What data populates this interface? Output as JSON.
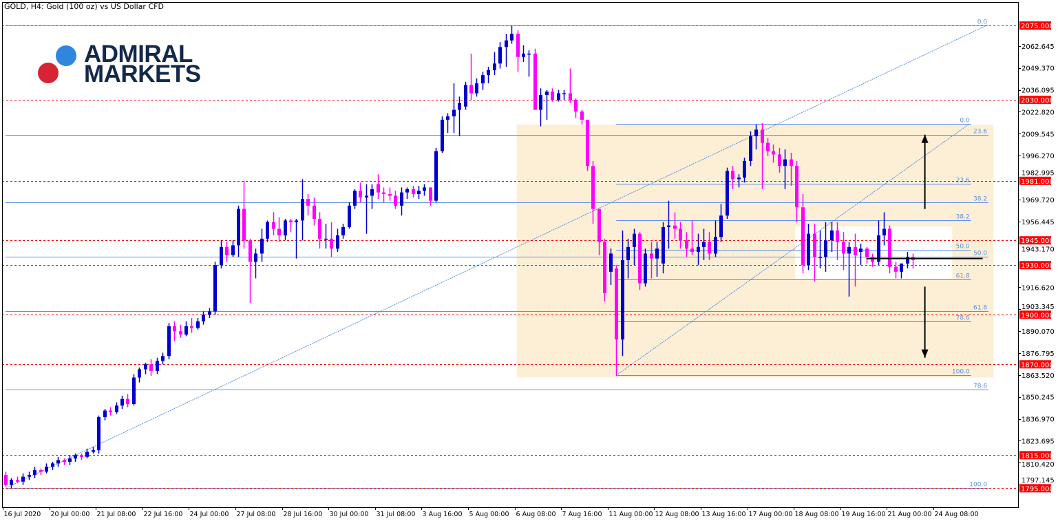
{
  "header": {
    "title": "GOLD, H4:  Gold (100 oz) vs US Dollar CFD"
  },
  "logo": {
    "line1": "ADMIRAL",
    "line2": "MARKETS",
    "colors": {
      "dot_blue": "#2e86de",
      "dot_red": "#d62434",
      "text": "#13294b"
    }
  },
  "chart_data": {
    "type": "candlestick",
    "symbol": "GOLD",
    "timeframe": "H4",
    "ylim": [
      1783.5,
      2089.2
    ],
    "y_ticks": [
      "2062.645",
      "2049.370",
      "2036.095",
      "2022.820",
      "2009.545",
      "1996.270",
      "1982.995",
      "1969.720",
      "1956.445",
      "1943.170",
      "1916.620",
      "1903.345",
      "1890.070",
      "1876.795",
      "1863.520",
      "1850.245",
      "1836.970",
      "1823.695",
      "1810.420",
      "1797.145"
    ],
    "x_ticks": [
      "16 Jul 2020",
      "20 Jul 00:00",
      "21 Jul 08:00",
      "22 Jul 16:00",
      "24 Jul 00:00",
      "27 Jul 08:00",
      "28 Jul 16:00",
      "30 Jul 00:00",
      "31 Jul 08:00",
      "3 Aug 16:00",
      "5 Aug 00:00",
      "6 Aug 08:00",
      "7 Aug 16:00",
      "11 Aug 00:00",
      "12 Aug 08:00",
      "13 Aug 16:00",
      "17 Aug 00:00",
      "18 Aug 08:00",
      "19 Aug 16:00",
      "21 Aug 00:00",
      "24 Aug 08:00"
    ],
    "x_tick_every_bars": 8,
    "colors": {
      "bull": "#0000cd",
      "bear": "#ff00ff",
      "level": "#ff0000",
      "fib": "#5b8ee6",
      "zone": "#fdefd6"
    },
    "candles_ohlc": [
      [
        1803,
        1805,
        1796,
        1797
      ],
      [
        1797,
        1801,
        1795,
        1800
      ],
      [
        1800,
        1802,
        1798,
        1799
      ],
      [
        1799,
        1804,
        1797,
        1802
      ],
      [
        1802,
        1805,
        1800,
        1803
      ],
      [
        1803,
        1808,
        1801,
        1806
      ],
      [
        1806,
        1807,
        1803,
        1805
      ],
      [
        1805,
        1810,
        1804,
        1808
      ],
      [
        1808,
        1811,
        1806,
        1810
      ],
      [
        1810,
        1814,
        1808,
        1812
      ],
      [
        1812,
        1813,
        1809,
        1811
      ],
      [
        1811,
        1815,
        1809,
        1813
      ],
      [
        1813,
        1816,
        1811,
        1815
      ],
      [
        1815,
        1816,
        1812,
        1814
      ],
      [
        1814,
        1819,
        1813,
        1817
      ],
      [
        1817,
        1820,
        1816,
        1818
      ],
      [
        1818,
        1839,
        1816,
        1838
      ],
      [
        1838,
        1843,
        1836,
        1842
      ],
      [
        1842,
        1844,
        1839,
        1841
      ],
      [
        1841,
        1847,
        1840,
        1845
      ],
      [
        1845,
        1851,
        1843,
        1849
      ],
      [
        1849,
        1852,
        1844,
        1846
      ],
      [
        1846,
        1864,
        1845,
        1862
      ],
      [
        1862,
        1868,
        1859,
        1867
      ],
      [
        1867,
        1871,
        1864,
        1870
      ],
      [
        1870,
        1873,
        1863,
        1866
      ],
      [
        1866,
        1874,
        1864,
        1872
      ],
      [
        1872,
        1877,
        1870,
        1875
      ],
      [
        1875,
        1895,
        1873,
        1893
      ],
      [
        1893,
        1896,
        1884,
        1890
      ],
      [
        1890,
        1894,
        1886,
        1888
      ],
      [
        1888,
        1896,
        1887,
        1893
      ],
      [
        1893,
        1898,
        1889,
        1892
      ],
      [
        1892,
        1898,
        1891,
        1896
      ],
      [
        1896,
        1902,
        1894,
        1900
      ],
      [
        1900,
        1904,
        1898,
        1902
      ],
      [
        1902,
        1932,
        1900,
        1930
      ],
      [
        1930,
        1945,
        1928,
        1941
      ],
      [
        1941,
        1944,
        1932,
        1936
      ],
      [
        1936,
        1945,
        1935,
        1942
      ],
      [
        1942,
        1966,
        1935,
        1964
      ],
      [
        1964,
        1981,
        1940,
        1945
      ],
      [
        1945,
        1946,
        1907,
        1932
      ],
      [
        1932,
        1940,
        1922,
        1937
      ],
      [
        1937,
        1952,
        1932,
        1946
      ],
      [
        1946,
        1957,
        1944,
        1956
      ],
      [
        1956,
        1962,
        1948,
        1952
      ],
      [
        1952,
        1959,
        1944,
        1948
      ],
      [
        1948,
        1958,
        1945,
        1957
      ],
      [
        1957,
        1958,
        1950,
        1956
      ],
      [
        1956,
        1958,
        1934,
        1957
      ],
      [
        1957,
        1982,
        1945,
        1970
      ],
      [
        1970,
        1973,
        1960,
        1966
      ],
      [
        1966,
        1971,
        1954,
        1958
      ],
      [
        1958,
        1962,
        1940,
        1946
      ],
      [
        1946,
        1955,
        1940,
        1946
      ],
      [
        1946,
        1956,
        1935,
        1940
      ],
      [
        1940,
        1952,
        1938,
        1948
      ],
      [
        1948,
        1955,
        1946,
        1953
      ],
      [
        1953,
        1968,
        1952,
        1966
      ],
      [
        1966,
        1976,
        1964,
        1975
      ],
      [
        1975,
        1980,
        1968,
        1971
      ],
      [
        1971,
        1979,
        1949,
        1972
      ],
      [
        1972,
        1979,
        1964,
        1976
      ],
      [
        1979,
        1985,
        1970,
        1974
      ],
      [
        1974,
        1977,
        1968,
        1973
      ],
      [
        1973,
        1977,
        1969,
        1972
      ],
      [
        1972,
        1975,
        1964,
        1966
      ],
      [
        1966,
        1977,
        1960,
        1974
      ],
      [
        1974,
        1977,
        1970,
        1976
      ],
      [
        1976,
        1978,
        1971,
        1973
      ],
      [
        1973,
        1978,
        1970,
        1975
      ],
      [
        1975,
        1979,
        1972,
        1977
      ],
      [
        1977,
        1977,
        1966,
        1969
      ],
      [
        1969,
        2001,
        1968,
        1999
      ],
      [
        1999,
        2020,
        1998,
        2018
      ],
      [
        2018,
        2022,
        2010,
        2020
      ],
      [
        2020,
        2040,
        2010,
        2024
      ],
      [
        2024,
        2032,
        2008,
        2028
      ],
      [
        2026,
        2041,
        2024,
        2039
      ],
      [
        2039,
        2058,
        2030,
        2034
      ],
      [
        2034,
        2043,
        2032,
        2040
      ],
      [
        2040,
        2047,
        2036,
        2045
      ],
      [
        2045,
        2050,
        2040,
        2048
      ],
      [
        2048,
        2059,
        2045,
        2052
      ],
      [
        2052,
        2065,
        2049,
        2062
      ],
      [
        2062,
        2070,
        2050,
        2066
      ],
      [
        2066,
        2075,
        2064,
        2070
      ],
      [
        2070,
        2072,
        2047,
        2056
      ],
      [
        2056,
        2063,
        2053,
        2058
      ],
      [
        2058,
        2060,
        2044,
        2058
      ],
      [
        2058,
        2061,
        2024,
        2024
      ],
      [
        2024,
        2037,
        2014,
        2033
      ],
      [
        2033,
        2036,
        2018,
        2035
      ],
      [
        2035,
        2037,
        2029,
        2030
      ],
      [
        2030,
        2036,
        2029,
        2034
      ],
      [
        2034,
        2036,
        2030,
        2034
      ],
      [
        2034,
        2049,
        2028,
        2030
      ],
      [
        2030,
        2031,
        2019,
        2023
      ],
      [
        2023,
        2024,
        2015,
        2018
      ],
      [
        2018,
        2018,
        1987,
        1990
      ],
      [
        1990,
        1993,
        1955,
        1964
      ],
      [
        1964,
        1964,
        1936,
        1944
      ],
      [
        1944,
        1946,
        1908,
        1913
      ],
      [
        1926,
        1940,
        1918,
        1937
      ],
      [
        1928,
        1930,
        1863,
        1885
      ],
      [
        1885,
        1951,
        1875,
        1933
      ],
      [
        1933,
        1946,
        1922,
        1941
      ],
      [
        1941,
        1952,
        1930,
        1949
      ],
      [
        1949,
        1950,
        1915,
        1919
      ],
      [
        1919,
        1940,
        1917,
        1937
      ],
      [
        1937,
        1944,
        1922,
        1934
      ],
      [
        1934,
        1944,
        1923,
        1940
      ],
      [
        1931,
        1956,
        1925,
        1953
      ],
      [
        1953,
        1969,
        1940,
        1954
      ],
      [
        1954,
        1962,
        1946,
        1952
      ],
      [
        1952,
        1956,
        1940,
        1945
      ],
      [
        1945,
        1950,
        1935,
        1940
      ],
      [
        1940,
        1957,
        1936,
        1938
      ],
      [
        1938,
        1949,
        1930,
        1941
      ],
      [
        1941,
        1952,
        1933,
        1944
      ],
      [
        1944,
        1950,
        1933,
        1937
      ],
      [
        1937,
        1957,
        1935,
        1947
      ],
      [
        1947,
        1967,
        1944,
        1960
      ],
      [
        1960,
        1989,
        1958,
        1987
      ],
      [
        1987,
        1990,
        1976,
        1982
      ],
      [
        1982,
        1985,
        1977,
        1983
      ],
      [
        1983,
        1995,
        1980,
        1993
      ],
      [
        1993,
        2011,
        1990,
        2008
      ],
      [
        2008,
        2015,
        2000,
        2012
      ],
      [
        2012,
        2016,
        1976,
        2004
      ],
      [
        2004,
        2007,
        1996,
        1999
      ],
      [
        1999,
        2003,
        1992,
        1997
      ],
      [
        1997,
        2001,
        1986,
        1990
      ],
      [
        1990,
        2000,
        1976,
        1994
      ],
      [
        1994,
        1998,
        1978,
        1990
      ],
      [
        1990,
        1993,
        1956,
        1965
      ],
      [
        1965,
        1973,
        1925,
        1930
      ],
      [
        1930,
        1955,
        1927,
        1949
      ],
      [
        1949,
        1955,
        1920,
        1935
      ],
      [
        1935,
        1951,
        1928,
        1935
      ],
      [
        1935,
        1956,
        1926,
        1945
      ],
      [
        1945,
        1956,
        1938,
        1951
      ],
      [
        1951,
        1956,
        1933,
        1944
      ],
      [
        1944,
        1950,
        1927,
        1937
      ],
      [
        1937,
        1944,
        1911,
        1941
      ],
      [
        1941,
        1949,
        1917,
        1936
      ],
      [
        1938,
        1943,
        1930,
        1940
      ],
      [
        1940,
        1941,
        1931,
        1935
      ],
      [
        1935,
        1937,
        1929,
        1932
      ],
      [
        1932,
        1957,
        1930,
        1948
      ],
      [
        1948,
        1962,
        1942,
        1952
      ],
      [
        1952,
        1954,
        1925,
        1929
      ],
      [
        1929,
        1932,
        1922,
        1926
      ],
      [
        1926,
        1931,
        1922,
        1931
      ],
      [
        1931,
        1938,
        1928,
        1935
      ],
      [
        1935,
        1937,
        1928,
        1933
      ]
    ],
    "horizontal_levels": [
      "2075.000",
      "2030.000",
      "1981.000",
      "1945.000",
      "1930.000",
      "1900.000",
      "1870.000",
      "1815.000",
      "1795.000"
    ],
    "fibonacci": [
      {
        "from_bar": 0,
        "to_bar": 169,
        "price_100": 1795,
        "price_0": 2075,
        "levels": [
          {
            "ratio": "0.0",
            "price": 2075
          },
          {
            "ratio": "23.6",
            "price": 2008.9
          },
          {
            "ratio": "38.2",
            "price": 1968.0
          },
          {
            "ratio": "50.0",
            "price": 1935.0
          },
          {
            "ratio": "61.8",
            "price": 1902.0
          },
          {
            "ratio": "78.6",
            "price": 1854.9
          },
          {
            "ratio": "100.0",
            "price": 1795
          }
        ]
      },
      {
        "from_bar": 105,
        "to_bar": 166,
        "price_100": 1863.3,
        "price_0": 2015.3,
        "levels": [
          {
            "ratio": "0.0",
            "price": 2015.3
          },
          {
            "ratio": "23.6",
            "price": 1979.4
          },
          {
            "ratio": "38.2",
            "price": 1957.2
          },
          {
            "ratio": "50.0",
            "price": 1939.3
          },
          {
            "ratio": "61.8",
            "price": 1921.4
          },
          {
            "ratio": "78.6",
            "price": 1895.8
          },
          {
            "ratio": "100.0",
            "price": 1863.3
          }
        ]
      }
    ],
    "zone": {
      "from_bar": 88,
      "to_bar": 170,
      "price_top": 2015,
      "price_bottom": 1862
    },
    "consolidation_box": {
      "from_bar": 136,
      "to_bar": 163,
      "price_top": 1953.4,
      "price_bottom": 1921.8
    },
    "black_line": {
      "from_bar": 148,
      "to_bar": 168,
      "price": 1934
    },
    "arrows": [
      {
        "direction": "up",
        "bar": 158,
        "from": 1964,
        "to": 2009
      },
      {
        "direction": "down",
        "bar": 158,
        "from": 1917,
        "to": 1874
      }
    ]
  }
}
